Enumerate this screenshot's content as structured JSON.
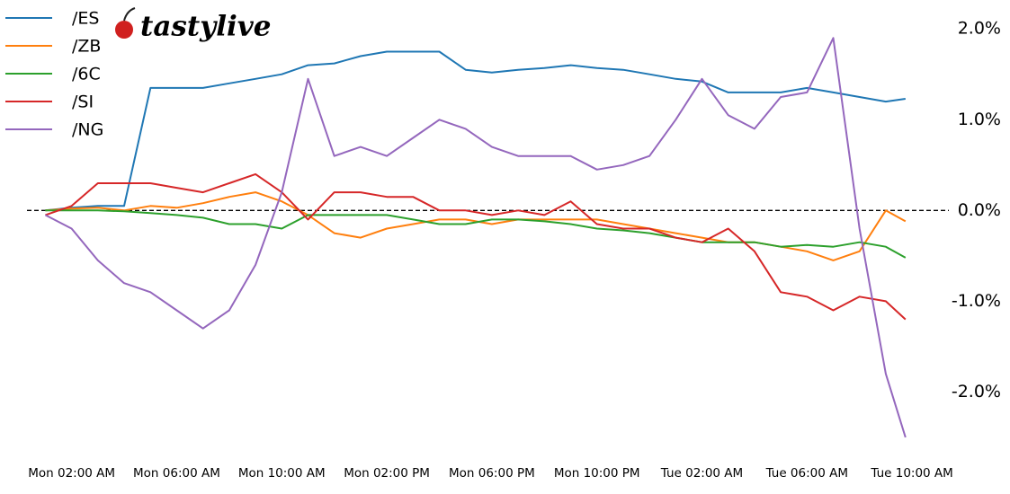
{
  "logo": "tastylive",
  "chart_data": {
    "type": "line",
    "x": [
      1,
      2,
      3,
      4,
      5,
      6,
      7,
      8,
      9,
      10,
      11,
      12,
      13,
      14,
      15,
      16,
      17,
      18,
      19,
      20,
      21,
      22,
      23,
      24,
      25,
      26,
      27,
      28,
      29,
      30,
      31,
      32,
      33,
      33.75
    ],
    "series": [
      {
        "name": "/ES",
        "color": "#1f77b4",
        "values": [
          0,
          0.03,
          0.05,
          0.05,
          1.35,
          1.35,
          1.35,
          1.4,
          1.45,
          1.5,
          1.6,
          1.62,
          1.7,
          1.75,
          1.75,
          1.75,
          1.55,
          1.52,
          1.55,
          1.57,
          1.6,
          1.57,
          1.55,
          1.5,
          1.45,
          1.42,
          1.3,
          1.3,
          1.3,
          1.35,
          1.3,
          1.25,
          1.2,
          1.23
        ]
      },
      {
        "name": "/ZB",
        "color": "#ff7f0e",
        "values": [
          0,
          0.02,
          0.03,
          0,
          0.05,
          0.03,
          0.08,
          0.15,
          0.2,
          0.1,
          -0.05,
          -0.25,
          -0.3,
          -0.2,
          -0.15,
          -0.1,
          -0.1,
          -0.15,
          -0.1,
          -0.1,
          -0.1,
          -0.1,
          -0.15,
          -0.2,
          -0.25,
          -0.3,
          -0.35,
          -0.35,
          -0.4,
          -0.45,
          -0.55,
          -0.45,
          0,
          -0.12
        ]
      },
      {
        "name": "/6C",
        "color": "#2ca02c",
        "values": [
          0,
          0,
          0,
          -0.01,
          -0.03,
          -0.05,
          -0.08,
          -0.15,
          -0.15,
          -0.2,
          -0.05,
          -0.05,
          -0.05,
          -0.05,
          -0.1,
          -0.15,
          -0.15,
          -0.1,
          -0.1,
          -0.12,
          -0.15,
          -0.2,
          -0.22,
          -0.25,
          -0.3,
          -0.35,
          -0.35,
          -0.35,
          -0.4,
          -0.38,
          -0.4,
          -0.35,
          -0.4,
          -0.52
        ]
      },
      {
        "name": "/SI",
        "color": "#d62728",
        "values": [
          -0.05,
          0.05,
          0.3,
          0.3,
          0.3,
          0.25,
          0.2,
          0.3,
          0.4,
          0.2,
          -0.1,
          0.2,
          0.2,
          0.15,
          0.15,
          0,
          0,
          -0.05,
          0,
          -0.05,
          0.1,
          -0.15,
          -0.2,
          -0.2,
          -0.3,
          -0.35,
          -0.2,
          -0.45,
          -0.9,
          -0.95,
          -1.1,
          -0.95,
          -1.0,
          -1.2
        ]
      },
      {
        "name": "/NG",
        "color": "#9467bd",
        "values": [
          -0.05,
          -0.2,
          -0.55,
          -0.8,
          -0.9,
          -1.1,
          -1.3,
          -1.1,
          -0.6,
          0.2,
          1.45,
          0.6,
          0.7,
          0.6,
          0.8,
          1.0,
          0.9,
          0.7,
          0.6,
          0.6,
          0.6,
          0.45,
          0.5,
          0.6,
          1.0,
          1.45,
          1.05,
          0.9,
          1.25,
          1.3,
          1.9,
          -0.2,
          -1.8,
          -2.5
        ]
      }
    ],
    "xlim": [
      0.3,
      35.4
    ],
    "xticks": [
      {
        "value": 2,
        "label": "Mon 02:00 AM"
      },
      {
        "value": 6,
        "label": "Mon 06:00 AM"
      },
      {
        "value": 10,
        "label": "Mon 10:00 AM"
      },
      {
        "value": 14,
        "label": "Mon 02:00 PM"
      },
      {
        "value": 18,
        "label": "Mon 06:00 PM"
      },
      {
        "value": 22,
        "label": "Mon 10:00 PM"
      },
      {
        "value": 26,
        "label": "Tue 02:00 AM"
      },
      {
        "value": 30,
        "label": "Tue 06:00 AM"
      },
      {
        "value": 34,
        "label": "Tue 10:00 AM"
      }
    ],
    "ylim": [
      -2.55,
      2.2
    ],
    "yticks": [
      {
        "value": 2,
        "label": "2.0%"
      },
      {
        "value": 1,
        "label": "1.0%"
      },
      {
        "value": 0,
        "label": "0.0%"
      },
      {
        "value": -1,
        "label": "-1.0%"
      },
      {
        "value": -2,
        "label": "-2.0%"
      }
    ],
    "reference_line": 0,
    "legend": "upper left"
  }
}
